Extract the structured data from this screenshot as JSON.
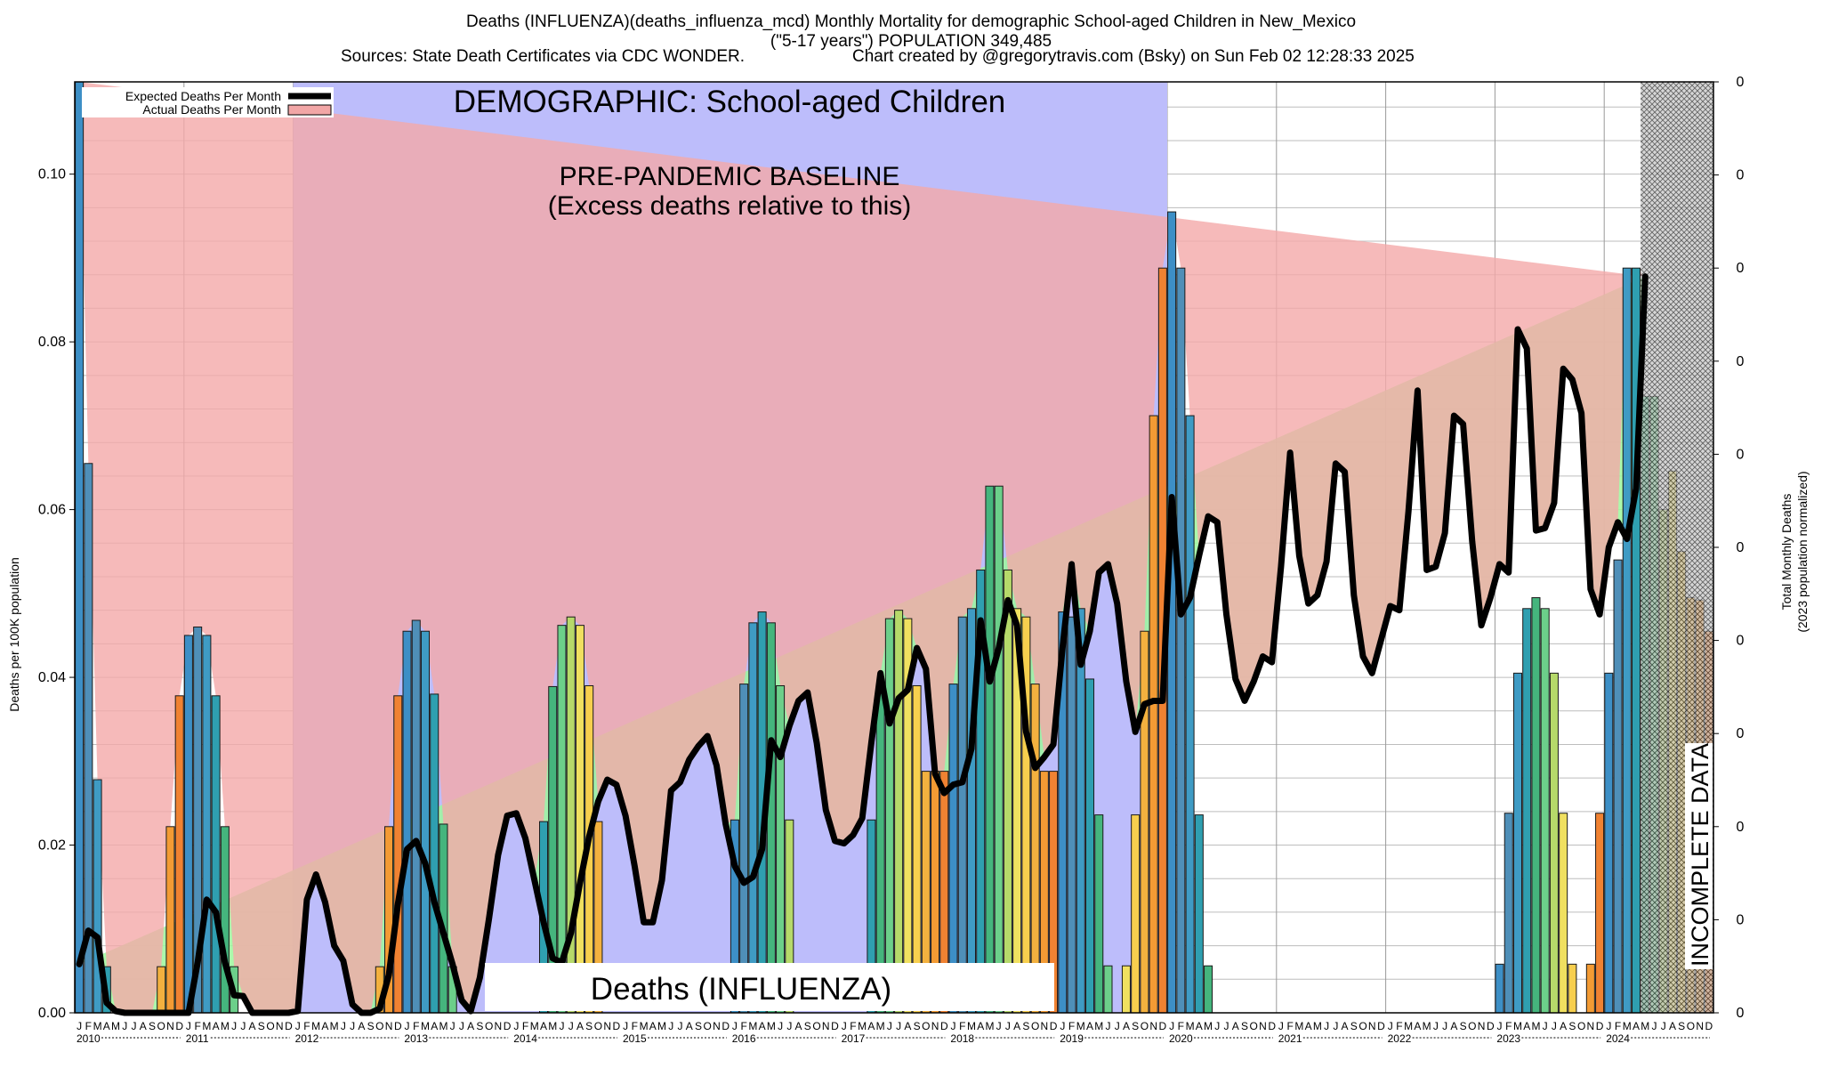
{
  "header": {
    "title_line1": "Deaths (INFLUENZA)(deaths_influenza_mcd) Monthly Mortality for demographic School-aged Children in New_Mexico",
    "title_line2": "(\"5-17 years\") POPULATION 349,485",
    "sources": "Sources: State Death Certificates via CDC WONDER.",
    "credit": "Chart created by @gregorytravis.com (Bsky) on Sun Feb 02 12:28:33 2025"
  },
  "chart_data": {
    "type": "bar",
    "ylabel_left": "Deaths per 100K population",
    "ylabel_right_1": "Total Monthly Deaths",
    "ylabel_right_2": "(2023 population normalized)",
    "ylim": [
      0,
      0.111
    ],
    "yticks_left": [
      "0.00",
      "0.02",
      "0.04",
      "0.06",
      "0.08",
      "0.10"
    ],
    "yticks_right": [
      "0",
      "0",
      "0",
      "0",
      "0",
      "0",
      "0",
      "0",
      "0",
      "0",
      "0"
    ],
    "month_letters": [
      "J",
      "F",
      "M",
      "A",
      "M",
      "J",
      "J",
      "A",
      "S",
      "O",
      "N",
      "D"
    ],
    "years": [
      "2010",
      "2011",
      "2012",
      "2013",
      "2014",
      "2015",
      "2016",
      "2017",
      "2018",
      "2019",
      "2020",
      "2021",
      "2022",
      "2023",
      "2024"
    ],
    "baseline_band": {
      "start_year": "2012",
      "end_year": "2019"
    },
    "incomplete_start": "2024-05",
    "annotations": {
      "demographic": "DEMOGRAPHIC: School-aged Children",
      "baseline_1": "PRE-PANDEMIC BASELINE",
      "baseline_2": "(Excess deaths relative to this)",
      "cause": "Deaths (INFLUENZA)",
      "incomplete": "INCOMPLETE DATA"
    },
    "legend": {
      "placement": "top-left",
      "expected": "Expected Deaths Per Month",
      "actual": "Actual Deaths Per Month"
    },
    "actual_per_month": [
      0.111,
      0.0655,
      0.0278,
      0.0055,
      0,
      0,
      0,
      0,
      0,
      0.0055,
      0.0222,
      0.0378,
      0.045,
      0.046,
      0.045,
      0.0378,
      0.0222,
      0.0055,
      0,
      0,
      0,
      0,
      0,
      0,
      0,
      0,
      0,
      0,
      0,
      0,
      0,
      0,
      0,
      0.0055,
      0.0222,
      0.0378,
      0.0455,
      0.0468,
      0.0455,
      0.038,
      0.0225,
      0.0055,
      0,
      0,
      0,
      0,
      0,
      0,
      0,
      0,
      0,
      0.0228,
      0.0389,
      0.0462,
      0.0472,
      0.0462,
      0.039,
      0.0228,
      0,
      0,
      0,
      0,
      0,
      0,
      0,
      0,
      0,
      0,
      0,
      0,
      0,
      0,
      0.023,
      0.0392,
      0.0465,
      0.0478,
      0.0465,
      0.039,
      0.023,
      0,
      0,
      0,
      0,
      0,
      0,
      0,
      0,
      0.023,
      0.0392,
      0.047,
      0.048,
      0.047,
      0.039,
      0.0288,
      0.0288,
      0.0288,
      0.0392,
      0.0472,
      0.0482,
      0.0528,
      0.0628,
      0.0628,
      0.0528,
      0.0482,
      0.0472,
      0.0392,
      0.0288,
      0.0288,
      0.0478,
      0.0472,
      0.0482,
      0.0398,
      0.0236,
      0.0056,
      0,
      0.0056,
      0.0236,
      0.0455,
      0.0712,
      0.0888,
      0.0955,
      0.0888,
      0.0712,
      0.0236,
      0.0056,
      0,
      0,
      0,
      0,
      0,
      0,
      0,
      0,
      0,
      0,
      0,
      0,
      0,
      0,
      0,
      0,
      0,
      0,
      0,
      0,
      0,
      0,
      0,
      0,
      0,
      0,
      0,
      0,
      0,
      0,
      0,
      0.0058,
      0.0238,
      0.0405,
      0.0482,
      0.0495,
      0.0482,
      0.0405,
      0.0238,
      0.0058,
      0,
      0.0058,
      0.0238,
      0.0405,
      0.054,
      0.0888,
      0.0888,
      0.0735,
      0.0735,
      0.06,
      0.0646,
      0.055,
      0.0495,
      0.0492,
      0.0455
    ],
    "expected_per_month": [
      0.0058,
      0.0098,
      0.009,
      0.0012,
      0.0002,
      0,
      0,
      0,
      0,
      0,
      0,
      0,
      0,
      0.006,
      0.0135,
      0.012,
      0.006,
      0.0021,
      0.002,
      0,
      0,
      0,
      0,
      0,
      0.0002,
      0.0135,
      0.0165,
      0.0132,
      0.008,
      0.0062,
      0.001,
      0,
      0,
      0.0005,
      0.0045,
      0.013,
      0.0195,
      0.0205,
      0.0178,
      0.0132,
      0.0095,
      0.0058,
      0.0015,
      0.0002,
      0.0042,
      0.0112,
      0.0188,
      0.0235,
      0.0238,
      0.0208,
      0.0158,
      0.0108,
      0.0065,
      0.006,
      0.0095,
      0.0155,
      0.021,
      0.0252,
      0.0278,
      0.0272,
      0.0235,
      0.0175,
      0.0108,
      0.0108,
      0.0158,
      0.0265,
      0.0275,
      0.0302,
      0.0318,
      0.033,
      0.0295,
      0.0225,
      0.0175,
      0.0155,
      0.0162,
      0.0195,
      0.0325,
      0.0305,
      0.0342,
      0.0372,
      0.0382,
      0.0322,
      0.0242,
      0.0205,
      0.0202,
      0.0212,
      0.0232,
      0.0322,
      0.0405,
      0.0345,
      0.0375,
      0.0385,
      0.0435,
      0.041,
      0.0285,
      0.0262,
      0.0272,
      0.0275,
      0.0315,
      0.0468,
      0.0395,
      0.0435,
      0.0492,
      0.0462,
      0.0335,
      0.0292,
      0.0305,
      0.032,
      0.0435,
      0.0535,
      0.0415,
      0.0455,
      0.0525,
      0.0535,
      0.0488,
      0.0395,
      0.0335,
      0.0368,
      0.0372,
      0.0372,
      0.0615,
      0.0475,
      0.0495,
      0.0545,
      0.0592,
      0.0585,
      0.0475,
      0.0398,
      0.0372,
      0.0395,
      0.0425,
      0.0418,
      0.0532,
      0.0668,
      0.0545,
      0.0488,
      0.0498,
      0.0538,
      0.0655,
      0.0645,
      0.0498,
      0.0425,
      0.0405,
      0.0445,
      0.0485,
      0.048,
      0.0598,
      0.0742,
      0.0528,
      0.0532,
      0.0572,
      0.0712,
      0.0702,
      0.0562,
      0.0462,
      0.0495,
      0.0535,
      0.0525,
      0.0815,
      0.0792,
      0.0575,
      0.0578,
      0.0608,
      0.0768,
      0.0755,
      0.0715,
      0.0505,
      0.0475,
      0.0555,
      0.0585,
      0.0565,
      0.0625,
      0.0878
    ]
  }
}
